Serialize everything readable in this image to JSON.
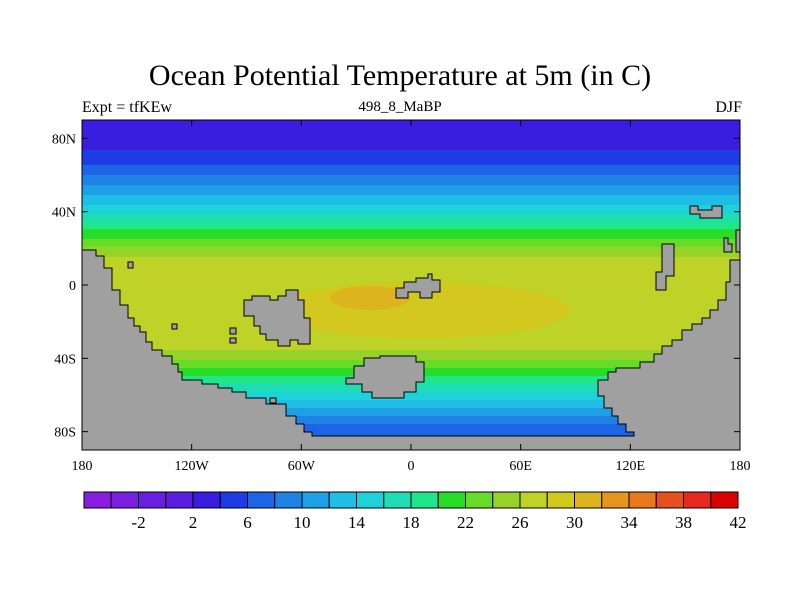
{
  "title": "Ocean Potential Temperature at 5m (in C)",
  "left_string": "Expt = tfKEw",
  "center_string": "498_8_MaBP",
  "right_string": "DJF",
  "map": {
    "lon_range": [
      -180,
      180
    ],
    "lat_range": [
      -90,
      90
    ],
    "land_color": "#a0a0a0",
    "x_ticks": [
      {
        "value": -180,
        "label": "180"
      },
      {
        "value": -120,
        "label": "120W"
      },
      {
        "value": -60,
        "label": "60W"
      },
      {
        "value": 0,
        "label": "0"
      },
      {
        "value": 60,
        "label": "60E"
      },
      {
        "value": 120,
        "label": "120E"
      },
      {
        "value": 180,
        "label": "180"
      }
    ],
    "y_ticks": [
      {
        "value": 80,
        "label": "80N"
      },
      {
        "value": 40,
        "label": "40N"
      },
      {
        "value": 0,
        "label": "0"
      },
      {
        "value": -40,
        "label": "40S"
      },
      {
        "value": -80,
        "label": "80S"
      }
    ]
  },
  "colorbar": {
    "colors": [
      "#8a1ee0",
      "#7a1ee0",
      "#6a1ee0",
      "#5a1ee0",
      "#3a1ee0",
      "#1e3ce6",
      "#1e64e6",
      "#1e82e6",
      "#1ea0e6",
      "#1ebee6",
      "#1ed2dc",
      "#1edcb4",
      "#1ee68c",
      "#28dc28",
      "#64dc28",
      "#96d228",
      "#bed228",
      "#d2c81e",
      "#dcb41e",
      "#e6961e",
      "#e6781e",
      "#e6501e",
      "#e6281e",
      "#dc0000"
    ],
    "labels": [
      "-2",
      "2",
      "6",
      "10",
      "14",
      "18",
      "22",
      "26",
      "30",
      "34",
      "38",
      "42"
    ]
  }
}
